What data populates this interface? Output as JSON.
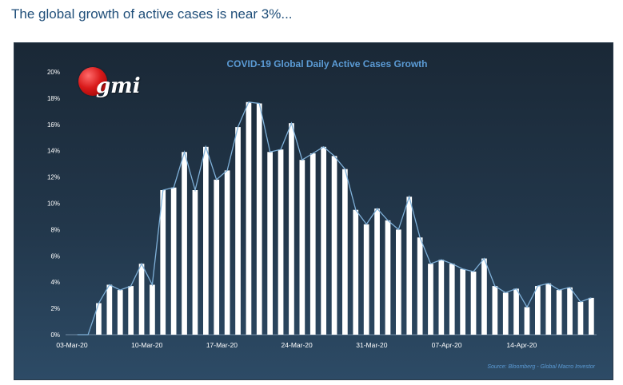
{
  "headline": "The global growth of active cases is near 3%...",
  "logo": {
    "text": "gmi"
  },
  "chart_data": {
    "type": "bar",
    "title": "COVID-19 Global Daily  Active Cases Growth",
    "source": "Source: Bloomberg - Global Macro Investor",
    "ylim": [
      0,
      20
    ],
    "yticks": [
      "0%",
      "2%",
      "4%",
      "6%",
      "8%",
      "10%",
      "12%",
      "14%",
      "16%",
      "18%",
      "20%"
    ],
    "xtick_labels": [
      "03-Mar-20",
      "10-Mar-20",
      "17-Mar-20",
      "24-Mar-20",
      "31-Mar-20",
      "07-Apr-20",
      "14-Apr-20"
    ],
    "xtick_index": [
      0,
      7,
      14,
      21,
      28,
      35,
      42
    ],
    "values": [
      0,
      0,
      2.4,
      3.8,
      3.4,
      3.7,
      5.4,
      3.8,
      11.0,
      11.2,
      13.9,
      11.0,
      14.3,
      11.8,
      12.5,
      15.8,
      17.7,
      17.6,
      13.9,
      14.1,
      16.1,
      13.3,
      13.8,
      14.3,
      13.6,
      12.6,
      9.5,
      8.4,
      9.6,
      8.7,
      8.0,
      10.5,
      7.4,
      5.4,
      5.7,
      5.4,
      5.0,
      4.8,
      5.8,
      3.7,
      3.2,
      3.5,
      2.1,
      3.7,
      3.9,
      3.4,
      3.6,
      2.5,
      2.8
    ],
    "colors": {
      "bar": "#ffffff",
      "line": "#7fb0d8",
      "title": "#5b9bd5",
      "axis_text": "#ffffff",
      "source": "#5b9bd5"
    }
  }
}
